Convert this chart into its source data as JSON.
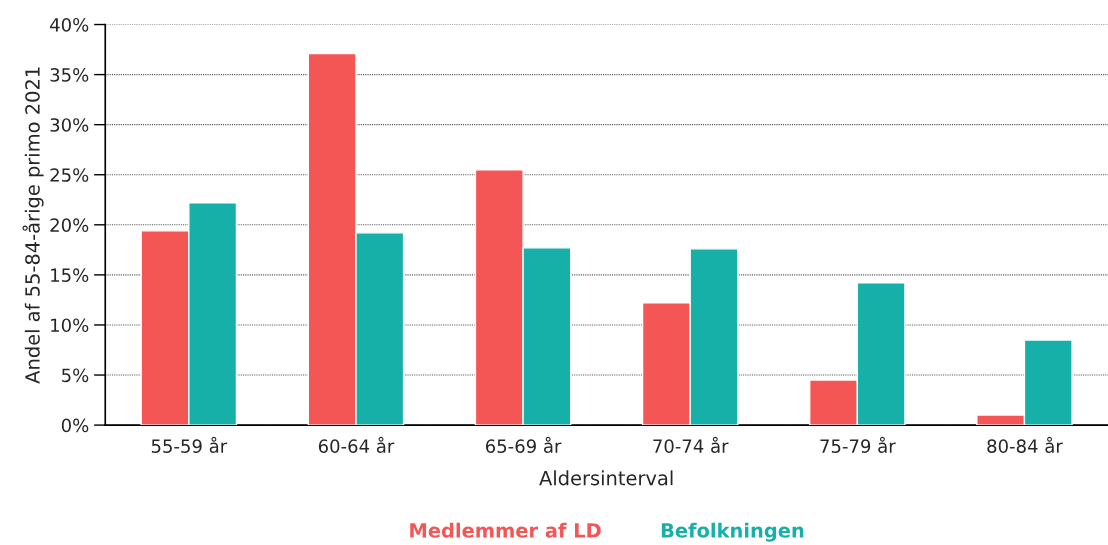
{
  "chart_data": {
    "type": "bar",
    "xlabel": "Aldersinterval",
    "ylabel": "Andel af 55-84-årige primo 2021",
    "categories": [
      "55-59 år",
      "60-64 år",
      "65-69 år",
      "70-74 år",
      "75-79 år",
      "80-84 år"
    ],
    "series": [
      {
        "name": "Medlemmer af LD",
        "color": "#f45555",
        "values": [
          19.4,
          37.1,
          25.5,
          12.2,
          4.5,
          1.0
        ]
      },
      {
        "name": "Befolkningen",
        "color": "#17b0a8",
        "values": [
          22.2,
          19.2,
          17.7,
          17.6,
          14.2,
          8.5
        ]
      }
    ],
    "ylim": [
      0,
      40
    ],
    "yticks": [
      {
        "value": 0,
        "label": "0%"
      },
      {
        "value": 5,
        "label": "5%"
      },
      {
        "value": 10,
        "label": "10%"
      },
      {
        "value": 15,
        "label": "15%"
      },
      {
        "value": 20,
        "label": "20%"
      },
      {
        "value": 25,
        "label": "25%"
      },
      {
        "value": 30,
        "label": "30%"
      },
      {
        "value": 35,
        "label": "35%"
      },
      {
        "value": 40,
        "label": "40%"
      }
    ],
    "grid": "y",
    "legend": "bottom"
  }
}
